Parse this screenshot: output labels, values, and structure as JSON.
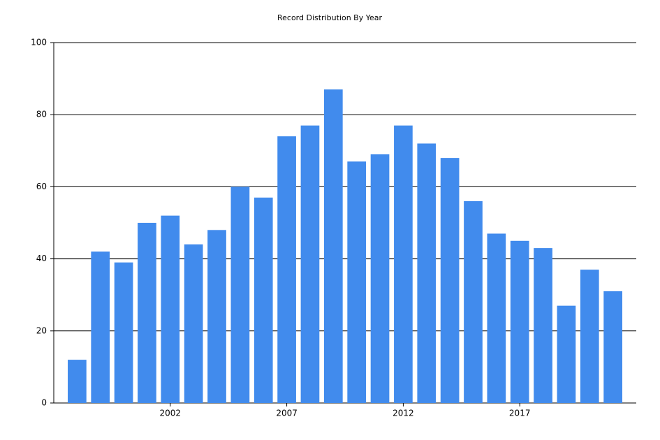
{
  "chart_data": {
    "type": "bar",
    "title": "Record Distribution By Year",
    "x": [
      1998,
      1999,
      2000,
      2001,
      2002,
      2003,
      2004,
      2005,
      2006,
      2007,
      2008,
      2009,
      2010,
      2011,
      2012,
      2013,
      2014,
      2015,
      2016,
      2017,
      2018,
      2019,
      2020,
      2021
    ],
    "values": [
      12,
      42,
      39,
      50,
      52,
      44,
      48,
      60,
      57,
      74,
      77,
      87,
      67,
      69,
      77,
      72,
      68,
      56,
      47,
      45,
      43,
      27,
      37,
      31
    ],
    "color": "#418bed",
    "xlim": [
      1997,
      2022
    ],
    "xticks": [
      2002,
      2007,
      2012,
      2017
    ],
    "ylim": [
      0,
      100
    ],
    "yticks": [
      0,
      20,
      40,
      60,
      80,
      100
    ],
    "grid": true
  }
}
